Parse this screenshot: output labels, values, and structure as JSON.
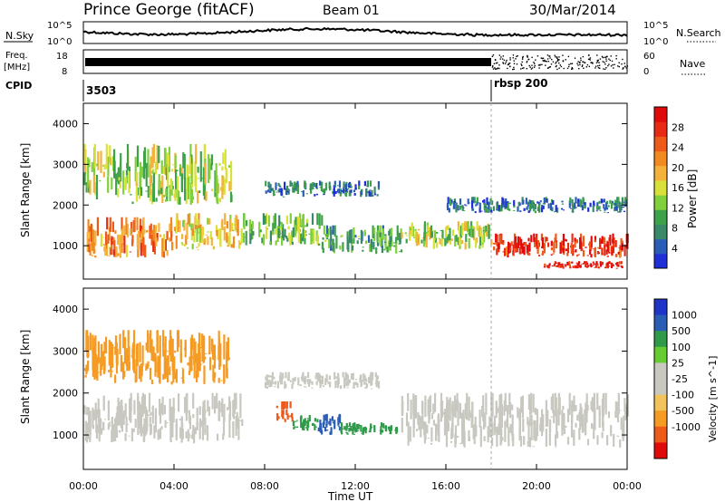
{
  "header": {
    "title": "Prince George (fitACF)",
    "beam": "Beam 01",
    "date": "30/Mar/2014"
  },
  "summary": {
    "nsky_label": "N.Sky",
    "nsky_ticks": [
      "10^5",
      "10^0"
    ],
    "nsearch_label": "N.Search",
    "nsearch_ticks": [
      "10^5",
      "10^0"
    ],
    "freq_label": "Freq.",
    "freq_unit": "[MHz]",
    "freq_ticks": [
      "18",
      "8"
    ],
    "nave_label": "Nave",
    "nave_ticks": [
      "60",
      "0"
    ],
    "cpid_label": "CPID",
    "cpid_entries": [
      {
        "time_h": 0,
        "text": "3503"
      },
      {
        "time_h": 18,
        "text": "rbsp 200"
      }
    ]
  },
  "colors": {
    "power": [
      "#1f2fd8",
      "#2a5db8",
      "#3a8a6a",
      "#3da24a",
      "#7fd03a",
      "#d9e03a",
      "#f4b23a",
      "#f28a22",
      "#ee5a1a",
      "#e82a14",
      "#e00a0a"
    ],
    "velocity_bar": [
      "#e00a0a",
      "#ee5a1a",
      "#f59a22",
      "#f3c25a",
      "#c8c8c0",
      "#c8c8c0",
      "#66cc33",
      "#2f9a4a",
      "#2a5eb4",
      "#1f35c8"
    ],
    "ground_scatter": "#c8c8c0"
  },
  "chart_data": [
    {
      "type": "heatmap",
      "name": "power",
      "ylabel": "Slant Range [km]",
      "xlim": [
        0,
        24
      ],
      "ylim": [
        180,
        4500
      ],
      "yticks": [
        1000,
        2000,
        3000,
        4000
      ],
      "colorbar": {
        "label": "Power [dB]",
        "ticks": [
          4,
          8,
          12,
          16,
          20,
          24,
          28
        ],
        "range": [
          0,
          32
        ]
      },
      "bands": [
        {
          "t": [
            0.0,
            4.0
          ],
          "r": [
            700,
            1700
          ],
          "level": 22
        },
        {
          "t": [
            4.0,
            7.0
          ],
          "r": [
            900,
            1800
          ],
          "level": 18
        },
        {
          "t": [
            7.0,
            10.5
          ],
          "r": [
            1000,
            1800
          ],
          "level": 12
        },
        {
          "t": [
            10.5,
            14.0
          ],
          "r": [
            800,
            1500
          ],
          "level": 10
        },
        {
          "t": [
            14.0,
            18.0
          ],
          "r": [
            900,
            1600
          ],
          "level": 14
        },
        {
          "t": [
            18.0,
            24.0
          ],
          "r": [
            700,
            1300
          ],
          "level": 28
        },
        {
          "t": [
            20.3,
            23.8
          ],
          "r": [
            440,
            620
          ],
          "level": 30
        },
        {
          "t": [
            0.0,
            6.5
          ],
          "r": [
            2000,
            3500
          ],
          "level": 14
        },
        {
          "t": [
            8.0,
            13.0
          ],
          "r": [
            2200,
            2600
          ],
          "level": 6
        },
        {
          "t": [
            16.0,
            24.0
          ],
          "r": [
            1800,
            2200
          ],
          "level": 6
        }
      ]
    },
    {
      "type": "heatmap",
      "name": "velocity",
      "ylabel": "Slant Range [km]",
      "xlabel": "Time UT",
      "xlim": [
        0,
        24
      ],
      "ylim": [
        180,
        4500
      ],
      "yticks": [
        1000,
        2000,
        3000,
        4000
      ],
      "xticks": [
        "00:00",
        "04:00",
        "08:00",
        "12:00",
        "16:00",
        "20:00",
        "00:00"
      ],
      "colorbar": {
        "label": "Velocity [m s^-1]",
        "ticks": [
          "1000",
          "500",
          "100",
          "25",
          "-25",
          "-100",
          "-500",
          "-1000"
        ]
      },
      "bands": [
        {
          "t": [
            0.0,
            7.0
          ],
          "r": [
            800,
            2000
          ],
          "velocity": 0
        },
        {
          "t": [
            14.0,
            24.0
          ],
          "r": [
            700,
            2000
          ],
          "velocity": 0
        },
        {
          "t": [
            8.0,
            13.0
          ],
          "r": [
            2100,
            2500
          ],
          "velocity": 0
        },
        {
          "t": [
            8.5,
            9.2
          ],
          "r": [
            1300,
            1800
          ],
          "velocity": -500
        },
        {
          "t": [
            9.2,
            10.3
          ],
          "r": [
            1100,
            1500
          ],
          "velocity": 100
        },
        {
          "t": [
            10.3,
            11.3
          ],
          "r": [
            1000,
            1500
          ],
          "velocity": 500
        },
        {
          "t": [
            11.3,
            13.8
          ],
          "r": [
            1000,
            1300
          ],
          "velocity": 100
        },
        {
          "t": [
            0.0,
            6.5
          ],
          "r": [
            2200,
            3500
          ],
          "velocity": -100
        }
      ]
    }
  ]
}
